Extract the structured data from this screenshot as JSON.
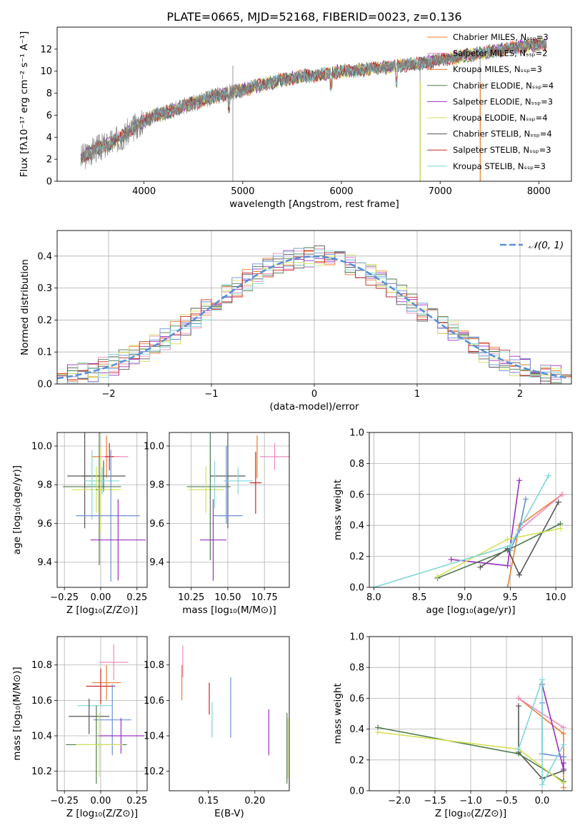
{
  "title": "PLATE=0665, MJD=52168, FIBERID=0023, z=0.136",
  "model_colors": [
    "#ed7d31",
    "#f08ac0",
    "#d2691e",
    "#4e7a4e",
    "#9b30c0",
    "#d4e157",
    "#555555",
    "#c62828",
    "#7fd6d6"
  ],
  "chart_data": [
    {
      "id": "spectrum",
      "type": "line",
      "xlabel": "wavelength [Angstrom, rest frame]",
      "ylabel": "Flux [fλ10⁻¹⁷ erg cm⁻² s⁻¹ A⁻¹]",
      "xlim": [
        3120,
        8330
      ],
      "ylim": [
        0,
        14
      ],
      "xticks": [
        "4000",
        "5000",
        "6000",
        "7000",
        "8000"
      ],
      "yticks": [
        "0",
        "2",
        "4",
        "6",
        "8",
        "10",
        "12"
      ],
      "grid": false,
      "legend_placement": "upper-right",
      "legend": [
        "Chabrier MILES, Nₛₛₚ=3",
        "Salpeter MILES, Nₛₛₚ=2",
        "Kroupa MILES, Nₛₛₚ=3",
        "Chabrier ELODIE, Nₛₛₚ=4",
        "Salpeter ELODIE, Nₛₛₚ=3",
        "Kroupa ELODIE, Nₛₛₚ=4",
        "Chabrier STELIB, Nₛₛₚ=4",
        "Salpeter STELIB, Nₛₛₚ=3",
        "Kroupa STELIB, Nₛₛₚ=3"
      ],
      "continuum": {
        "x": [
          3360,
          3500,
          3650,
          3800,
          3950,
          4100,
          4250,
          4400,
          4600,
          4800,
          5000,
          5200,
          5400,
          5600,
          5800,
          6000,
          6200,
          6400,
          6600,
          6800,
          7000,
          7200,
          7400,
          7600,
          7800,
          8000,
          8080
        ],
        "y": [
          2.1,
          2.9,
          3.4,
          4.2,
          5.2,
          6.0,
          6.3,
          6.8,
          7.4,
          7.9,
          8.3,
          8.8,
          9.2,
          9.5,
          9.7,
          10.0,
          10.1,
          10.3,
          10.5,
          10.7,
          11.0,
          11.3,
          11.6,
          11.9,
          12.2,
          12.4,
          12.5
        ]
      }
    },
    {
      "id": "residuals",
      "type": "histogram",
      "xlabel": "(data-model)/error",
      "ylabel": "Normed distribution",
      "xlim": [
        -2.5,
        2.5
      ],
      "ylim": [
        0,
        0.48
      ],
      "xticks": [
        "−2",
        "−1",
        "0",
        "1",
        "2"
      ],
      "yticks": [
        "0.0",
        "0.1",
        "0.2",
        "0.3",
        "0.4"
      ],
      "grid": true,
      "legend": [
        "𝒩(0, 1)"
      ],
      "legend_placement": "upper-right",
      "bin_width": 0.1
    },
    {
      "id": "age-vs-Z",
      "type": "scatter",
      "xlabel": "Z [log₁₀(Z/Z⊙)]",
      "ylabel": "age  [log₁₀(age/yr)]",
      "xlim": [
        -0.3,
        0.32
      ],
      "ylim": [
        9.27,
        10.07
      ],
      "xticks": [
        "−0.25",
        "0.00",
        "0.25"
      ],
      "yticks": [
        "9.4",
        "9.6",
        "9.8",
        "10.0"
      ],
      "grid": true,
      "points": [
        {
          "x": 0.04,
          "y": 9.945,
          "xerr": 0.1,
          "yerr": 0.11,
          "c": "#ed7d31"
        },
        {
          "x": 0.09,
          "y": 9.945,
          "xerr": 0.1,
          "yerr": 0.0,
          "c": "#f08ac0"
        },
        {
          "x": 0.06,
          "y": 9.945,
          "xerr": 0.03,
          "yerr": 0.07,
          "c": "#c62828"
        },
        {
          "x": 0.02,
          "y": 9.845,
          "xerr": 0.15,
          "yerr": 0.08,
          "c": "#555555"
        },
        {
          "x": -0.11,
          "y": 9.845,
          "xerr": 0.12,
          "yerr": 0.27,
          "c": "#555555"
        },
        {
          "x": 0.01,
          "y": 9.82,
          "xerr": 0.12,
          "yerr": 0.07,
          "c": "#7fd6d6"
        },
        {
          "x": -0.06,
          "y": 9.79,
          "xerr": 0.2,
          "yerr": 0.0,
          "c": "#4e7a4e"
        },
        {
          "x": -0.03,
          "y": 9.775,
          "xerr": 0.17,
          "yerr": 0.12,
          "c": "#d4e157"
        },
        {
          "x": -0.06,
          "y": 9.8,
          "xerr": 0.03,
          "yerr": 0.18,
          "c": "#7fd6d6"
        },
        {
          "x": -0.01,
          "y": 9.775,
          "xerr": 0.02,
          "yerr": 0.39,
          "c": "#4e7a4e"
        },
        {
          "x": 0.0,
          "y": 9.775,
          "xerr": 0.02,
          "yerr": 0.22,
          "c": "#d4e157"
        },
        {
          "x": 0.05,
          "y": 9.64,
          "xerr": 0.22,
          "yerr": 0.0,
          "c": "#6a8fd6"
        },
        {
          "x": 0.07,
          "y": 9.64,
          "xerr": 0.0,
          "yerr": 0.34,
          "c": "#6a8fd6"
        },
        {
          "x": 0.12,
          "y": 9.515,
          "xerr": 0.19,
          "yerr": 0.21,
          "c": "#9b30c0"
        }
      ]
    },
    {
      "id": "age-vs-mass",
      "type": "scatter",
      "xlabel": "mass [log₁₀(M/M⊙)]",
      "ylabel": "",
      "xlim": [
        10.1,
        10.92
      ],
      "ylim": [
        9.27,
        10.07
      ],
      "xticks": [
        "10.25",
        "10.50",
        "10.75"
      ],
      "yticks": [
        "9.4",
        "9.6",
        "9.8",
        "10.0"
      ],
      "grid": true,
      "points": [
        {
          "x": 10.7,
          "y": 9.945,
          "xerr": 0.0,
          "yerr": 0.11,
          "c": "#ed7d31"
        },
        {
          "x": 10.82,
          "y": 9.945,
          "xerr": 0.1,
          "yerr": 0.07,
          "c": "#f08ac0"
        },
        {
          "x": 10.69,
          "y": 9.81,
          "xerr": 0.04,
          "yerr": 0.16,
          "c": "#c62828"
        },
        {
          "x": 10.5,
          "y": 9.845,
          "xerr": 0.12,
          "yerr": 0.27,
          "c": "#555555"
        },
        {
          "x": 10.57,
          "y": 9.82,
          "xerr": 0.1,
          "yerr": 0.07,
          "c": "#7fd6d6"
        },
        {
          "x": 10.37,
          "y": 9.79,
          "xerr": 0.15,
          "yerr": 0.0,
          "c": "#4e7a4e"
        },
        {
          "x": 10.35,
          "y": 9.775,
          "xerr": 0.12,
          "yerr": 0.12,
          "c": "#d4e157"
        },
        {
          "x": 10.38,
          "y": 9.8,
          "xerr": 0.0,
          "yerr": 0.39,
          "c": "#4e7a4e"
        },
        {
          "x": 10.41,
          "y": 9.8,
          "xerr": 0.0,
          "yerr": 0.12,
          "c": "#7fd6d6"
        },
        {
          "x": 10.5,
          "y": 9.64,
          "xerr": 0.1,
          "yerr": 0.0,
          "c": "#6a8fd6"
        },
        {
          "x": 10.49,
          "y": 9.8,
          "xerr": 0.0,
          "yerr": 0.2,
          "c": "#6a8fd6"
        },
        {
          "x": 10.4,
          "y": 9.515,
          "xerr": 0.09,
          "yerr": 0.21,
          "c": "#9b30c0"
        }
      ]
    },
    {
      "id": "massweight-vs-age",
      "type": "line",
      "xlabel": "age  [log₁₀(age/yr)]",
      "ylabel": "mass weight",
      "xlim": [
        7.95,
        10.18
      ],
      "ylim": [
        0,
        1
      ],
      "xticks": [
        "8.0",
        "8.5",
        "9.0",
        "9.5",
        "10.0"
      ],
      "yticks": [
        "0.0",
        "0.2",
        "0.4",
        "0.6",
        "0.8",
        "1.0"
      ],
      "grid": true,
      "series": [
        {
          "c": "#ed7d31",
          "x": [
            9.47,
            9.6,
            10.07
          ],
          "y": [
            0.0,
            0.4,
            0.6
          ]
        },
        {
          "c": "#f08ac0",
          "x": [
            9.6,
            10.07
          ],
          "y": [
            0.37,
            0.6
          ]
        },
        {
          "c": "#9b30c0",
          "x": [
            8.85,
            9.47,
            9.6
          ],
          "y": [
            0.18,
            0.14,
            0.69
          ]
        },
        {
          "c": "#555555",
          "x": [
            9.17,
            9.47,
            9.6,
            10.03
          ],
          "y": [
            0.13,
            0.25,
            0.08,
            0.55
          ]
        },
        {
          "c": "#4e7a4e",
          "x": [
            8.7,
            9.47,
            10.05
          ],
          "y": [
            0.06,
            0.24,
            0.41
          ]
        },
        {
          "c": "#d4e157",
          "x": [
            8.7,
            9.47,
            10.05
          ],
          "y": [
            0.07,
            0.31,
            0.38
          ]
        },
        {
          "c": "#6a8fd6",
          "x": [
            9.5,
            9.6,
            9.67
          ],
          "y": [
            0.24,
            0.37,
            0.57
          ]
        },
        {
          "c": "#7fd6d6",
          "x": [
            8.0,
            9.5,
            9.92
          ],
          "y": [
            0.0,
            0.27,
            0.72
          ]
        }
      ]
    },
    {
      "id": "mass-vs-Z",
      "type": "scatter",
      "xlabel": "Z [log₁₀(Z/Z⊙)]",
      "ylabel": "mass [log₁₀(M/M⊙)]",
      "xlim": [
        -0.3,
        0.32
      ],
      "ylim": [
        10.09,
        10.96
      ],
      "xticks": [
        "−0.25",
        "0.00",
        "0.25"
      ],
      "yticks": [
        "10.2",
        "10.4",
        "10.6",
        "10.8"
      ],
      "grid": true,
      "points": [
        {
          "x": 0.09,
          "y": 10.815,
          "xerr": 0.1,
          "yerr": 0.1,
          "c": "#f08ac0"
        },
        {
          "x": 0.04,
          "y": 10.7,
          "xerr": 0.1,
          "yerr": 0.1,
          "c": "#ed7d31"
        },
        {
          "x": 0.0,
          "y": 10.68,
          "xerr": 0.1,
          "yerr": 0.1,
          "c": "#c62828"
        },
        {
          "x": -0.04,
          "y": 10.57,
          "xerr": 0.12,
          "yerr": 0.0,
          "c": "#7fd6d6"
        },
        {
          "x": -0.08,
          "y": 10.51,
          "xerr": 0.14,
          "yerr": 0.1,
          "c": "#555555"
        },
        {
          "x": 0.08,
          "y": 10.49,
          "xerr": 0.13,
          "yerr": 0.2,
          "c": "#6a8fd6"
        },
        {
          "x": 0.14,
          "y": 10.4,
          "xerr": 0.16,
          "yerr": 0.1,
          "c": "#9b30c0"
        },
        {
          "x": -0.03,
          "y": 10.35,
          "xerr": 0.21,
          "yerr": 0.22,
          "c": "#4e7a4e"
        },
        {
          "x": -0.01,
          "y": 10.35,
          "xerr": 0.16,
          "yerr": 0.18,
          "c": "#d4e157"
        }
      ]
    },
    {
      "id": "mass-vs-EBV",
      "type": "scatter",
      "xlabel": "E(B-V)",
      "ylabel": "",
      "xlim": [
        0.108,
        0.237
      ],
      "ylim": [
        10.09,
        10.96
      ],
      "xticks": [
        "0.15",
        "0.20"
      ],
      "yticks": [
        "10.2",
        "10.4",
        "10.6",
        "10.8"
      ],
      "grid": false,
      "points": [
        {
          "x": 0.1225,
          "y": 10.82,
          "xerr": 0.0,
          "yerr": 0.09,
          "c": "#f08ac0"
        },
        {
          "x": 0.1215,
          "y": 10.7,
          "xerr": 0.0,
          "yerr": 0.1,
          "c": "#ed7d31"
        },
        {
          "x": 0.151,
          "y": 10.61,
          "xerr": 0.0,
          "yerr": 0.09,
          "c": "#c62828"
        },
        {
          "x": 0.154,
          "y": 10.49,
          "xerr": 0.0,
          "yerr": 0.1,
          "c": "#7fd6d6"
        },
        {
          "x": 0.174,
          "y": 10.56,
          "xerr": 0.0,
          "yerr": 0.17,
          "c": "#6a8fd6"
        },
        {
          "x": 0.215,
          "y": 10.42,
          "xerr": 0.0,
          "yerr": 0.13,
          "c": "#9b30c0"
        },
        {
          "x": 0.2345,
          "y": 10.33,
          "xerr": 0.0,
          "yerr": 0.2,
          "c": "#4e7a4e"
        },
        {
          "x": 0.2355,
          "y": 10.33,
          "xerr": 0.0,
          "yerr": 0.17,
          "c": "#d4e157"
        }
      ]
    },
    {
      "id": "massweight-vs-Z",
      "type": "line",
      "xlabel": "Z [log₁₀(Z/Z⊙)]",
      "ylabel": "mass weight",
      "xlim": [
        -2.42,
        0.42
      ],
      "ylim": [
        0,
        1
      ],
      "xticks": [
        "−2.0",
        "−1.5",
        "−1.0",
        "−0.5",
        "0.0"
      ],
      "yticks": [
        "0.0",
        "0.2",
        "0.4",
        "0.6",
        "0.8",
        "1.0"
      ],
      "grid": true,
      "series": [
        {
          "c": "#ed7d31",
          "x": [
            -0.33,
            0.3,
            0.3
          ],
          "y": [
            0.6,
            0.37,
            0.02
          ]
        },
        {
          "c": "#f08ac0",
          "x": [
            -0.33,
            0.3
          ],
          "y": [
            0.6,
            0.41
          ]
        },
        {
          "c": "#9b30c0",
          "x": [
            0.0,
            0.3,
            0.3
          ],
          "y": [
            0.69,
            0.14,
            0.18
          ]
        },
        {
          "c": "#555555",
          "x": [
            -0.33,
            -0.33,
            0.0,
            0.3
          ],
          "y": [
            0.55,
            0.25,
            0.08,
            0.13
          ]
        },
        {
          "c": "#4e7a4e",
          "x": [
            -2.3,
            -0.33,
            0.3
          ],
          "y": [
            0.41,
            0.24,
            0.06
          ]
        },
        {
          "c": "#d4e157",
          "x": [
            -2.3,
            -0.33,
            0.3
          ],
          "y": [
            0.38,
            0.27,
            0.05
          ]
        },
        {
          "c": "#6a8fd6",
          "x": [
            0.0,
            0.0,
            0.3
          ],
          "y": [
            0.57,
            0.24,
            0.22
          ]
        },
        {
          "c": "#7fd6d6",
          "x": [
            -0.33,
            0.0,
            0.0,
            0.3
          ],
          "y": [
            0.27,
            0.72,
            0.04,
            0.3
          ]
        }
      ]
    }
  ]
}
